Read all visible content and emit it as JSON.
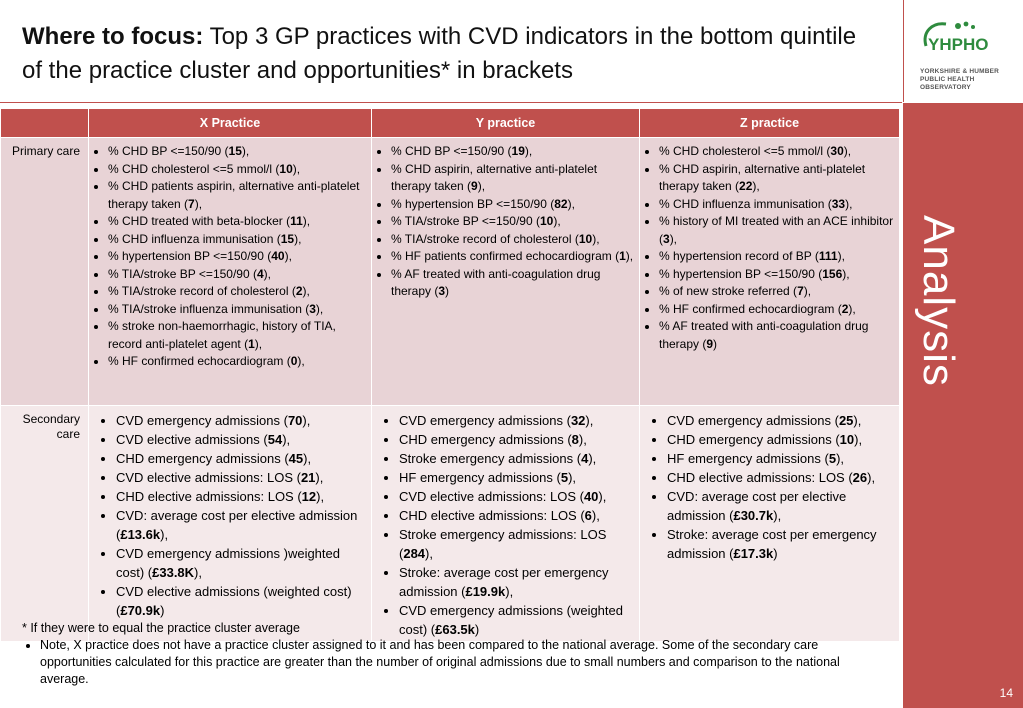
{
  "title": {
    "bold": "Where to focus:",
    "rest": " Top 3 GP practices with CVD indicators in the bottom quintile of the practice cluster and opportunities* in brackets"
  },
  "logo": {
    "name": "YHPHO",
    "subtitle_line1": "YORKSHIRE & HUMBER",
    "subtitle_line2": "PUBLIC HEALTH OBSERVATORY",
    "color": "#2e8b3e"
  },
  "sidebar": {
    "word": "Analysis",
    "page_number": "14",
    "color": "#c0504d"
  },
  "table": {
    "columns": [
      "",
      "X Practice",
      "Y practice",
      "Z practice"
    ],
    "rows": [
      {
        "label": "Primary care",
        "cells": [
          [
            {
              "t": "% CHD BP <=150/90 (",
              "b": "15",
              "a": "),"
            },
            {
              "t": "% CHD cholesterol <=5 mmol/l (",
              "b": "10",
              "a": "),"
            },
            {
              "t": "% CHD patients aspirin, alternative anti-platelet therapy taken (",
              "b": "7",
              "a": "),"
            },
            {
              "t": "% CHD treated with beta-blocker (",
              "b": "11",
              "a": "),"
            },
            {
              "t": "% CHD influenza immunisation (",
              "b": "15",
              "a": "),"
            },
            {
              "t": "% hypertension BP <=150/90 (",
              "b": "40",
              "a": "),"
            },
            {
              "t": "% TIA/stroke BP <=150/90 (",
              "b": "4",
              "a": "),"
            },
            {
              "t": "% TIA/stroke record of cholesterol (",
              "b": "2",
              "a": "),"
            },
            {
              "t": "% TIA/stroke influenza immunisation (",
              "b": "3",
              "a": "),"
            },
            {
              "t": "% stroke non-haemorrhagic, history of TIA, record anti-platelet agent (",
              "b": "1",
              "a": "),"
            },
            {
              "t": "% HF confirmed echocardiogram (",
              "b": "0",
              "a": "),"
            }
          ],
          [
            {
              "t": "% CHD BP <=150/90 (",
              "b": "19",
              "a": "),"
            },
            {
              "t": "% CHD aspirin, alternative anti-platelet therapy taken (",
              "b": "9",
              "a": "),"
            },
            {
              "t": "% hypertension BP <=150/90 (",
              "b": "82",
              "a": "),"
            },
            {
              "t": "% TIA/stroke BP <=150/90 (",
              "b": "10",
              "a": "),"
            },
            {
              "t": "% TIA/stroke record of cholesterol (",
              "b": "10",
              "a": "),"
            },
            {
              "t": "% HF patients confirmed echocardiogram (",
              "b": "1",
              "a": "),"
            },
            {
              "t": "% AF treated with anti-coagulation drug therapy (",
              "b": "3",
              "a": ")"
            }
          ],
          [
            {
              "t": "% CHD cholesterol <=5 mmol/l (",
              "b": "30",
              "a": "),"
            },
            {
              "t": "% CHD aspirin, alternative anti-platelet therapy taken (",
              "b": "22",
              "a": "),"
            },
            {
              "t": "% CHD influenza immunisation (",
              "b": "33",
              "a": "),"
            },
            {
              "t": "% history of MI treated with an ACE inhibitor (",
              "b": "3",
              "a": "),"
            },
            {
              "t": "% hypertension record of BP (",
              "b": "111",
              "a": "),"
            },
            {
              "t": "% hypertension BP <=150/90 (",
              "b": "156",
              "a": "),"
            },
            {
              "t": "% of new stroke referred (",
              "b": "7",
              "a": "),"
            },
            {
              "t": "% HF confirmed echocardiogram (",
              "b": "2",
              "a": "),"
            },
            {
              "t": "% AF treated with anti-coagulation drug therapy (",
              "b": "9",
              "a": ")"
            }
          ]
        ]
      },
      {
        "label": "Secondary care",
        "cells": [
          [
            {
              "t": "CVD emergency admissions (",
              "b": "70",
              "a": "),"
            },
            {
              "t": "CVD elective admissions (",
              "b": "54",
              "a": "),"
            },
            {
              "t": "CHD emergency admissions (",
              "b": "45",
              "a": "),"
            },
            {
              "t": "CVD elective admissions: LOS (",
              "b": "21",
              "a": "),"
            },
            {
              "t": "CHD elective admissions: LOS (",
              "b": "12",
              "a": "),"
            },
            {
              "t": "CVD: average cost per elective admission (",
              "b": "£13.6k",
              "a": "),"
            },
            {
              "t": "CVD emergency admissions )weighted cost) (",
              "b": "£33.8K",
              "a": "),"
            },
            {
              "t": "CVD elective admissions  (weighted cost) (",
              "b": "£70.9k",
              "a": ")"
            }
          ],
          [
            {
              "t": "CVD emergency admissions (",
              "b": "32",
              "a": "),"
            },
            {
              "t": "CHD emergency admissions (",
              "b": "8",
              "a": "),"
            },
            {
              "t": "Stroke emergency admissions (",
              "b": "4",
              "a": "),"
            },
            {
              "t": "HF emergency admissions (",
              "b": "5",
              "a": "),"
            },
            {
              "t": "CVD elective admissions: LOS (",
              "b": "40",
              "a": "),"
            },
            {
              "t": "CHD elective admissions: LOS (",
              "b": "6",
              "a": "),"
            },
            {
              "t": "Stroke emergency admissions: LOS (",
              "b": "284",
              "a": "),"
            },
            {
              "t": "Stroke: average cost per emergency admission (",
              "b": "£19.9k",
              "a": "),"
            },
            {
              "t": "CVD emergency admissions (weighted cost) (",
              "b": "£63.5k",
              "a": ")"
            }
          ],
          [
            {
              "t": "CVD emergency admissions (",
              "b": "25",
              "a": "),"
            },
            {
              "t": "CHD emergency admissions (",
              "b": "10",
              "a": "),"
            },
            {
              "t": "HF emergency admissions (",
              "b": "5",
              "a": "),"
            },
            {
              "t": "CHD elective admissions: LOS (",
              "b": "26",
              "a": "),"
            },
            {
              "t": "CVD: average cost per elective admission (",
              "b": "£30.7k",
              "a": "),"
            },
            {
              "t": "Stroke: average cost per emergency admission (",
              "b": "£17.3k",
              "a": ")"
            }
          ]
        ]
      }
    ]
  },
  "footer": {
    "note": "* If they were to equal the practice cluster average",
    "bullet": "Note, X practice does not have a practice cluster assigned to it and has been compared to the national average.  Some of the secondary care opportunities calculated for this practice  are greater than the number of original admissions due to small numbers and comparison to the national average."
  }
}
